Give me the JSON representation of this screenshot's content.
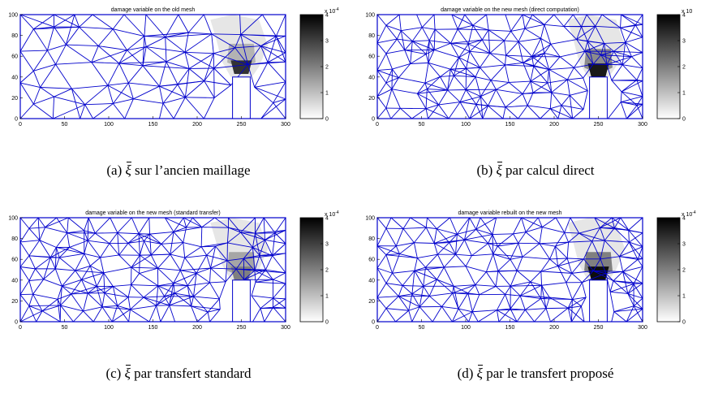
{
  "figure": {
    "panels": [
      {
        "title": "damage variable on the old mesh",
        "caption_prefix": "(a)",
        "caption_symbol": "ξ",
        "caption_text": "sur l’ancien maillage",
        "colorbar_exponent": "x 10",
        "colorbar_exponent_power": "-4",
        "hot_cells": [
          {
            "x": 250,
            "y": 60,
            "v": 0.3
          },
          {
            "x": 250,
            "y": 48,
            "v": 0.8
          }
        ]
      },
      {
        "title": "damage variable on the new mesh (direct computation)",
        "caption_prefix": "(b)",
        "caption_symbol": "ξ",
        "caption_text": "par calcul direct",
        "colorbar_exponent": "x 10",
        "colorbar_exponent_power": "",
        "hot_cells": [
          {
            "x": 250,
            "y": 55,
            "v": 0.45
          },
          {
            "x": 250,
            "y": 45,
            "v": 0.9
          }
        ]
      },
      {
        "title": "damage variable on the new mesh (standard transfer)",
        "caption_prefix": "(c)",
        "caption_symbol": "ξ",
        "caption_text": "par transfert standard",
        "colorbar_exponent": "x 10",
        "colorbar_exponent_power": "-4",
        "hot_cells": [
          {
            "x": 250,
            "y": 55,
            "v": 0.35
          },
          {
            "x": 250,
            "y": 45,
            "v": 0.5
          }
        ]
      },
      {
        "title": "damage variable rebuilt on the new mesh",
        "caption_prefix": "(d)",
        "caption_symbol": "ξ",
        "caption_text": "par le transfert proposé",
        "colorbar_exponent": "x 10",
        "colorbar_exponent_power": "-4",
        "hot_cells": [
          {
            "x": 250,
            "y": 55,
            "v": 0.5
          },
          {
            "x": 250,
            "y": 45,
            "v": 0.95
          }
        ]
      }
    ],
    "x_ticks": [
      "0",
      "50",
      "100",
      "150",
      "200",
      "250",
      "300"
    ],
    "y_ticks": [
      "0",
      "20",
      "40",
      "60",
      "80",
      "100"
    ],
    "colorbar_ticks": [
      "0",
      "1",
      "2",
      "3",
      "4"
    ],
    "mesh_color": "#0000cc"
  },
  "chart_data": {
    "type": "heatmap",
    "xlim": [
      0,
      300
    ],
    "ylim": [
      0,
      100
    ],
    "color_range": [
      0,
      4
    ],
    "color_scale": "x 10^-4",
    "colormap": "gray (white to black)"
  }
}
